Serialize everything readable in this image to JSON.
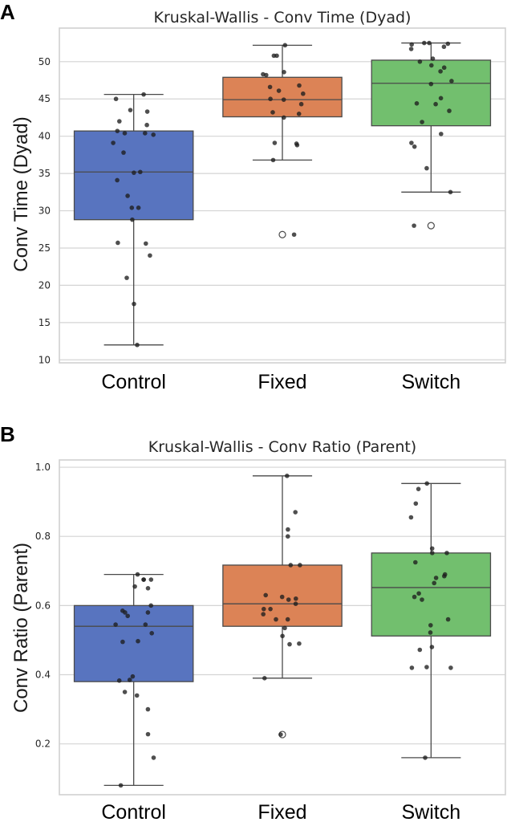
{
  "chart_data": [
    {
      "type": "box",
      "panel": "A",
      "title": "Kruskal-Wallis - Conv Time (Dyad)",
      "xlabel": "",
      "ylabel": "Conv Time (Dyad)",
      "ylim": [
        9.6,
        54.5
      ],
      "yticks": [
        10,
        15,
        20,
        25,
        30,
        35,
        40,
        45,
        50
      ],
      "grid": true,
      "categories": [
        "Control",
        "Fixed",
        "Switch"
      ],
      "series": [
        {
          "name": "Control",
          "color": "#5874bf",
          "whisker_low": 12.0,
          "q1": 28.8,
          "median": 35.2,
          "q3": 40.7,
          "whisker_high": 45.6,
          "outliers": [],
          "points": [
            45.6,
            45.0,
            43.5,
            43.3,
            42.0,
            41.5,
            40.7,
            40.2,
            40.4,
            40.4,
            39.1,
            37.8,
            35.2,
            35.1,
            34.1,
            32.0,
            30.4,
            30.4,
            28.8,
            25.7,
            25.6,
            24.0,
            21.0,
            17.5,
            12.0
          ]
        },
        {
          "name": "Fixed",
          "color": "#dc8356",
          "whisker_low": 36.8,
          "q1": 42.6,
          "median": 44.9,
          "q3": 47.9,
          "whisker_high": 52.2,
          "outliers": [
            26.8
          ],
          "points": [
            52.2,
            50.8,
            50.8,
            48.6,
            48.2,
            48.3,
            46.8,
            46.6,
            46.1,
            45.7,
            45.0,
            44.9,
            44.3,
            43.0,
            43.2,
            42.5,
            39.0,
            39.1,
            38.8,
            36.8,
            26.8
          ]
        },
        {
          "name": "Switch",
          "color": "#72bf6e",
          "whisker_low": 32.5,
          "q1": 41.4,
          "median": 47.1,
          "q3": 50.2,
          "whisker_high": 52.5,
          "outliers": [
            28.0
          ],
          "points": [
            52.5,
            52.5,
            52.4,
            52.3,
            52.0,
            51.7,
            50.4,
            50.0,
            49.5,
            49.2,
            48.7,
            47.4,
            47.0,
            45.1,
            44.4,
            44.3,
            43.4,
            41.9,
            40.3,
            39.1,
            38.6,
            35.7,
            32.5,
            28.0
          ]
        }
      ]
    },
    {
      "type": "box",
      "panel": "B",
      "title": "Kruskal-Wallis - Conv Ratio (Parent)",
      "xlabel": "",
      "ylabel": "Conv Ratio (Parent)",
      "ylim": [
        0.053,
        1.021
      ],
      "yticks": [
        0.2,
        0.4,
        0.6,
        0.8,
        1.0
      ],
      "grid": true,
      "categories": [
        "Control",
        "Fixed",
        "Switch"
      ],
      "series": [
        {
          "name": "Control",
          "color": "#5874bf",
          "whisker_low": 0.08,
          "q1": 0.38,
          "median": 0.54,
          "q3": 0.6,
          "whisker_high": 0.69,
          "outliers": [],
          "points": [
            0.69,
            0.675,
            0.675,
            0.675,
            0.655,
            0.65,
            0.6,
            0.585,
            0.58,
            0.58,
            0.57,
            0.545,
            0.545,
            0.52,
            0.497,
            0.495,
            0.395,
            0.385,
            0.383,
            0.35,
            0.34,
            0.3,
            0.228,
            0.16,
            0.08
          ]
        },
        {
          "name": "Fixed",
          "color": "#dc8356",
          "whisker_low": 0.39,
          "q1": 0.54,
          "median": 0.605,
          "q3": 0.717,
          "whisker_high": 0.975,
          "outliers": [
            0.227
          ],
          "points": [
            0.975,
            0.87,
            0.82,
            0.8,
            0.717,
            0.717,
            0.63,
            0.625,
            0.62,
            0.617,
            0.605,
            0.59,
            0.59,
            0.575,
            0.56,
            0.56,
            0.535,
            0.512,
            0.49,
            0.488,
            0.39,
            0.227
          ]
        },
        {
          "name": "Switch",
          "color": "#72bf6e",
          "whisker_low": 0.16,
          "q1": 0.512,
          "median": 0.652,
          "q3": 0.752,
          "whisker_high": 0.953,
          "outliers": [],
          "points": [
            0.953,
            0.937,
            0.895,
            0.855,
            0.765,
            0.752,
            0.752,
            0.725,
            0.69,
            0.685,
            0.68,
            0.665,
            0.635,
            0.625,
            0.617,
            0.56,
            0.543,
            0.522,
            0.48,
            0.472,
            0.422,
            0.42,
            0.42,
            0.16
          ]
        }
      ]
    }
  ]
}
